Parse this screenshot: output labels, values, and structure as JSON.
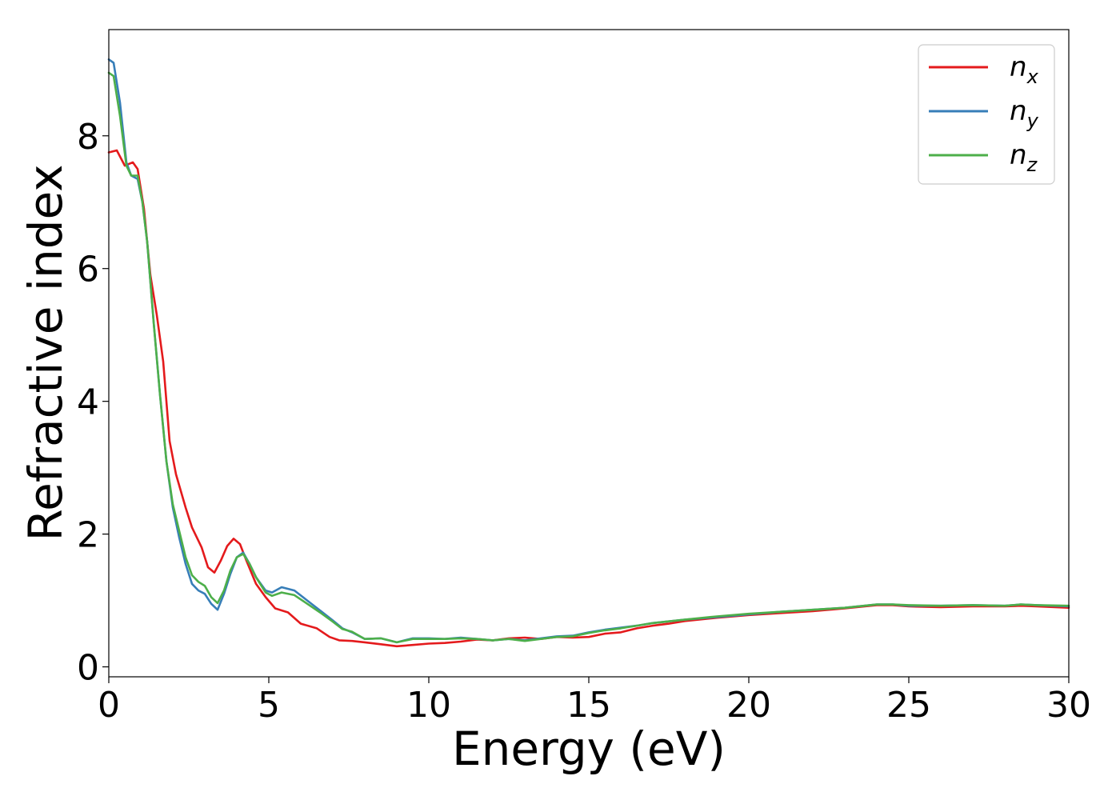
{
  "chart_data": {
    "type": "line",
    "title": "",
    "xlabel": "Energy (eV)",
    "ylabel": "Refractive index",
    "xlim": [
      0,
      30
    ],
    "ylim": [
      -0.15,
      9.6
    ],
    "xticks": [
      "0",
      "5",
      "10",
      "15",
      "20",
      "25",
      "30"
    ],
    "yticks": [
      "0",
      "2",
      "4",
      "6",
      "8"
    ],
    "grid": false,
    "legend_position": "top-right",
    "series": [
      {
        "name_main": "n",
        "name_sub": "x",
        "color": "#e41a1c",
        "points": [
          [
            0,
            7.75
          ],
          [
            0.25,
            7.78
          ],
          [
            0.5,
            7.55
          ],
          [
            0.75,
            7.6
          ],
          [
            0.9,
            7.5
          ],
          [
            1.1,
            6.9
          ],
          [
            1.3,
            5.9
          ],
          [
            1.5,
            5.3
          ],
          [
            1.7,
            4.6
          ],
          [
            1.9,
            3.4
          ],
          [
            2.1,
            2.9
          ],
          [
            2.4,
            2.4
          ],
          [
            2.6,
            2.1
          ],
          [
            2.9,
            1.8
          ],
          [
            3.1,
            1.5
          ],
          [
            3.3,
            1.42
          ],
          [
            3.5,
            1.6
          ],
          [
            3.7,
            1.82
          ],
          [
            3.9,
            1.93
          ],
          [
            4.1,
            1.85
          ],
          [
            4.3,
            1.6
          ],
          [
            4.6,
            1.25
          ],
          [
            4.9,
            1.05
          ],
          [
            5.2,
            0.88
          ],
          [
            5.6,
            0.82
          ],
          [
            6.0,
            0.65
          ],
          [
            6.5,
            0.58
          ],
          [
            6.9,
            0.45
          ],
          [
            7.2,
            0.4
          ],
          [
            7.6,
            0.39
          ],
          [
            8.0,
            0.37
          ],
          [
            8.5,
            0.34
          ],
          [
            9.0,
            0.31
          ],
          [
            9.5,
            0.33
          ],
          [
            10.0,
            0.35
          ],
          [
            10.5,
            0.36
          ],
          [
            11.0,
            0.38
          ],
          [
            11.5,
            0.41
          ],
          [
            12.0,
            0.4
          ],
          [
            12.5,
            0.43
          ],
          [
            13.0,
            0.44
          ],
          [
            13.5,
            0.42
          ],
          [
            14.0,
            0.45
          ],
          [
            14.5,
            0.44
          ],
          [
            15.0,
            0.45
          ],
          [
            15.5,
            0.5
          ],
          [
            16.0,
            0.52
          ],
          [
            16.5,
            0.58
          ],
          [
            17.0,
            0.62
          ],
          [
            17.5,
            0.65
          ],
          [
            18.0,
            0.69
          ],
          [
            19.0,
            0.74
          ],
          [
            20.0,
            0.78
          ],
          [
            21.0,
            0.81
          ],
          [
            22.0,
            0.84
          ],
          [
            23.0,
            0.88
          ],
          [
            24.0,
            0.93
          ],
          [
            24.5,
            0.93
          ],
          [
            25.0,
            0.91
          ],
          [
            26.0,
            0.9
          ],
          [
            27.0,
            0.91
          ],
          [
            28.0,
            0.91
          ],
          [
            28.5,
            0.92
          ],
          [
            29.0,
            0.91
          ],
          [
            30.0,
            0.89
          ]
        ]
      },
      {
        "name_main": "n",
        "name_sub": "y",
        "color": "#377eb8",
        "points": [
          [
            0,
            9.15
          ],
          [
            0.15,
            9.1
          ],
          [
            0.35,
            8.5
          ],
          [
            0.55,
            7.6
          ],
          [
            0.7,
            7.4
          ],
          [
            0.9,
            7.35
          ],
          [
            1.05,
            7.0
          ],
          [
            1.2,
            6.4
          ],
          [
            1.4,
            5.2
          ],
          [
            1.6,
            4.1
          ],
          [
            1.8,
            3.1
          ],
          [
            2.0,
            2.4
          ],
          [
            2.2,
            1.95
          ],
          [
            2.4,
            1.55
          ],
          [
            2.6,
            1.25
          ],
          [
            2.8,
            1.15
          ],
          [
            3.0,
            1.1
          ],
          [
            3.2,
            0.95
          ],
          [
            3.4,
            0.86
          ],
          [
            3.6,
            1.1
          ],
          [
            3.8,
            1.4
          ],
          [
            4.0,
            1.65
          ],
          [
            4.2,
            1.72
          ],
          [
            4.4,
            1.55
          ],
          [
            4.6,
            1.35
          ],
          [
            4.9,
            1.15
          ],
          [
            5.1,
            1.12
          ],
          [
            5.4,
            1.2
          ],
          [
            5.8,
            1.15
          ],
          [
            6.2,
            1.0
          ],
          [
            6.6,
            0.85
          ],
          [
            7.0,
            0.7
          ],
          [
            7.3,
            0.58
          ],
          [
            7.6,
            0.52
          ],
          [
            8.0,
            0.42
          ],
          [
            8.5,
            0.43
          ],
          [
            9.0,
            0.37
          ],
          [
            9.5,
            0.43
          ],
          [
            10.0,
            0.43
          ],
          [
            10.5,
            0.42
          ],
          [
            11.0,
            0.44
          ],
          [
            11.5,
            0.42
          ],
          [
            12.0,
            0.4
          ],
          [
            12.5,
            0.42
          ],
          [
            13.0,
            0.4
          ],
          [
            13.5,
            0.43
          ],
          [
            14.0,
            0.46
          ],
          [
            14.5,
            0.47
          ],
          [
            15.0,
            0.52
          ],
          [
            15.5,
            0.56
          ],
          [
            16.0,
            0.59
          ],
          [
            16.5,
            0.62
          ],
          [
            17.0,
            0.66
          ],
          [
            18.0,
            0.71
          ],
          [
            19.0,
            0.75
          ],
          [
            20.0,
            0.79
          ],
          [
            21.0,
            0.83
          ],
          [
            22.0,
            0.86
          ],
          [
            23.0,
            0.89
          ],
          [
            24.0,
            0.94
          ],
          [
            24.5,
            0.94
          ],
          [
            25.0,
            0.92
          ],
          [
            26.0,
            0.92
          ],
          [
            27.0,
            0.93
          ],
          [
            28.0,
            0.92
          ],
          [
            28.5,
            0.94
          ],
          [
            29.0,
            0.93
          ],
          [
            30.0,
            0.91
          ]
        ]
      },
      {
        "name_main": "n",
        "name_sub": "z",
        "color": "#4daf4a",
        "points": [
          [
            0,
            8.95
          ],
          [
            0.15,
            8.9
          ],
          [
            0.35,
            8.3
          ],
          [
            0.55,
            7.55
          ],
          [
            0.7,
            7.4
          ],
          [
            0.9,
            7.4
          ],
          [
            1.05,
            7.0
          ],
          [
            1.2,
            6.4
          ],
          [
            1.4,
            5.2
          ],
          [
            1.6,
            4.1
          ],
          [
            1.8,
            3.1
          ],
          [
            2.0,
            2.45
          ],
          [
            2.2,
            2.05
          ],
          [
            2.4,
            1.65
          ],
          [
            2.6,
            1.38
          ],
          [
            2.8,
            1.28
          ],
          [
            3.0,
            1.22
          ],
          [
            3.2,
            1.05
          ],
          [
            3.4,
            0.96
          ],
          [
            3.6,
            1.15
          ],
          [
            3.8,
            1.45
          ],
          [
            4.0,
            1.65
          ],
          [
            4.2,
            1.7
          ],
          [
            4.4,
            1.55
          ],
          [
            4.6,
            1.35
          ],
          [
            4.9,
            1.12
          ],
          [
            5.1,
            1.07
          ],
          [
            5.4,
            1.12
          ],
          [
            5.8,
            1.08
          ],
          [
            6.2,
            0.95
          ],
          [
            6.6,
            0.82
          ],
          [
            7.0,
            0.68
          ],
          [
            7.3,
            0.57
          ],
          [
            7.6,
            0.53
          ],
          [
            8.0,
            0.42
          ],
          [
            8.5,
            0.43
          ],
          [
            9.0,
            0.37
          ],
          [
            9.5,
            0.42
          ],
          [
            10.0,
            0.42
          ],
          [
            10.5,
            0.42
          ],
          [
            11.0,
            0.43
          ],
          [
            11.5,
            0.42
          ],
          [
            12.0,
            0.4
          ],
          [
            12.5,
            0.42
          ],
          [
            13.0,
            0.39
          ],
          [
            13.5,
            0.42
          ],
          [
            14.0,
            0.45
          ],
          [
            14.5,
            0.46
          ],
          [
            15.0,
            0.51
          ],
          [
            15.5,
            0.55
          ],
          [
            16.0,
            0.58
          ],
          [
            16.5,
            0.62
          ],
          [
            17.0,
            0.66
          ],
          [
            18.0,
            0.71
          ],
          [
            19.0,
            0.76
          ],
          [
            20.0,
            0.8
          ],
          [
            21.0,
            0.83
          ],
          [
            22.0,
            0.86
          ],
          [
            23.0,
            0.89
          ],
          [
            24.0,
            0.94
          ],
          [
            24.5,
            0.94
          ],
          [
            25.0,
            0.93
          ],
          [
            26.0,
            0.92
          ],
          [
            27.0,
            0.93
          ],
          [
            28.0,
            0.92
          ],
          [
            28.5,
            0.94
          ],
          [
            29.0,
            0.93
          ],
          [
            30.0,
            0.92
          ]
        ]
      }
    ]
  }
}
